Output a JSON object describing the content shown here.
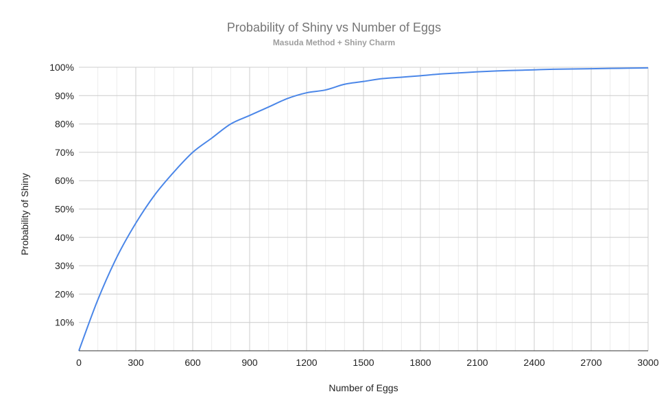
{
  "chart_data": {
    "type": "line",
    "title": "Probability of Shiny vs Number of Eggs",
    "subtitle": "Masuda Method + Shiny Charm",
    "xlabel": "Number of Eggs",
    "ylabel": "Probability of Shiny",
    "xlim": [
      0,
      3000
    ],
    "ylim": [
      0,
      1
    ],
    "x_ticks": [
      "0",
      "300",
      "600",
      "900",
      "1200",
      "1500",
      "1800",
      "2100",
      "2400",
      "2700",
      "3000"
    ],
    "y_ticks": [
      "10%",
      "20%",
      "30%",
      "40%",
      "50%",
      "60%",
      "70%",
      "80%",
      "90%",
      "100%"
    ],
    "grid": true,
    "legend": "none",
    "colors": {
      "line": "#4a86e8"
    },
    "series": [
      {
        "x": [
          0,
          100,
          200,
          300,
          400,
          500,
          600,
          700,
          800,
          900,
          1000,
          1100,
          1200,
          1300,
          1400,
          1500,
          1600,
          1700,
          1800,
          1900,
          2000,
          2100,
          2200,
          2300,
          2400,
          2500,
          2600,
          2700,
          2800,
          2900,
          3000
        ],
        "values": [
          0,
          0.18,
          0.33,
          0.45,
          0.55,
          0.63,
          0.7,
          0.75,
          0.8,
          0.83,
          0.86,
          0.89,
          0.91,
          0.92,
          0.94,
          0.95,
          0.96,
          0.965,
          0.97,
          0.976,
          0.98,
          0.984,
          0.987,
          0.989,
          0.991,
          0.993,
          0.994,
          0.995,
          0.996,
          0.997,
          0.998
        ]
      }
    ]
  }
}
